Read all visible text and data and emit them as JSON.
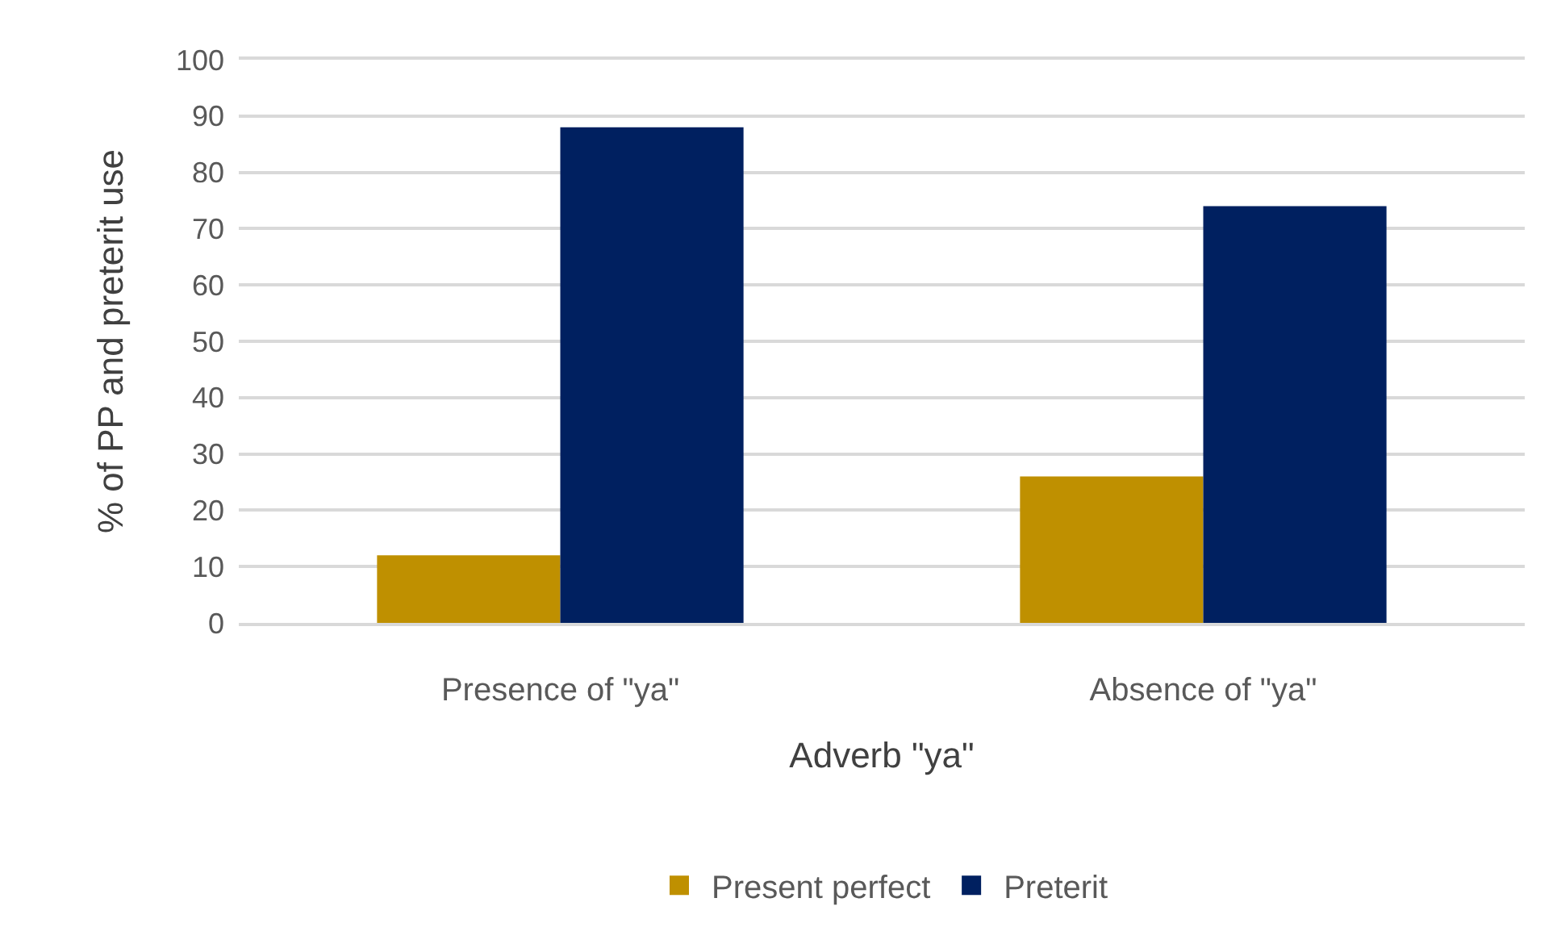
{
  "chart_data": {
    "type": "bar",
    "xlabel": "Adverb \"ya\"",
    "ylabel": "% of PP and preterit use",
    "categories": [
      "Presence of \"ya\"",
      "Absence of \"ya\""
    ],
    "series": [
      {
        "name": "Present perfect",
        "color": "#bf9000",
        "values": [
          12,
          26
        ]
      },
      {
        "name": "Preterit",
        "color": "#002060",
        "values": [
          88,
          74
        ]
      }
    ],
    "ylim": [
      0,
      100
    ],
    "yticks": [
      0,
      10,
      20,
      30,
      40,
      50,
      60,
      70,
      80,
      90,
      100
    ],
    "grid": "y",
    "legend": "bottom"
  }
}
